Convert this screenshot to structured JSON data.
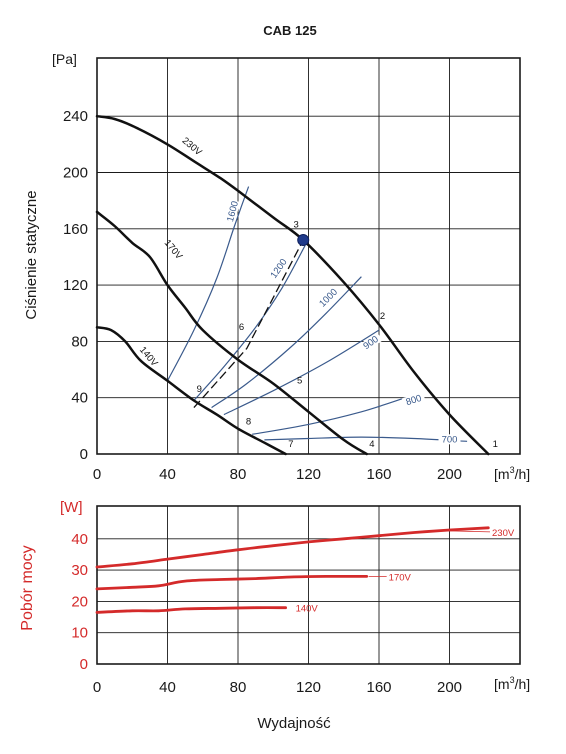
{
  "chart_data": [
    {
      "type": "line",
      "title": "CAB 125",
      "ylabel": "Ciśnienie statyczne",
      "yunit": "[Pa]",
      "xunit_base": "[m",
      "xunit_sup": "3",
      "xunit_tail": "/h]",
      "xlim": [
        0,
        240
      ],
      "ylim": [
        0,
        260
      ],
      "xticks": [
        "0",
        "40",
        "80",
        "120",
        "160",
        "200"
      ],
      "yticks": [
        "0",
        "40",
        "80",
        "120",
        "160",
        "200",
        "240"
      ],
      "grid": true,
      "series": [
        {
          "name": "230V",
          "points": [
            [
              0,
              240
            ],
            [
              10,
              238
            ],
            [
              22,
              232
            ],
            [
              40,
              220
            ],
            [
              55,
              208
            ],
            [
              70,
              196
            ],
            [
              80,
              187
            ],
            [
              100,
              168
            ],
            [
              117,
              152
            ],
            [
              140,
              122
            ],
            [
              160,
              92
            ],
            [
              180,
              58
            ],
            [
              200,
              28
            ],
            [
              222,
              0
            ]
          ]
        },
        {
          "name": "170V",
          "points": [
            [
              0,
              172
            ],
            [
              10,
              162
            ],
            [
              20,
              150
            ],
            [
              30,
              140
            ],
            [
              40,
              120
            ],
            [
              50,
              104
            ],
            [
              60,
              88
            ],
            [
              80,
              67
            ],
            [
              100,
              50
            ],
            [
              120,
              30
            ],
            [
              140,
              10
            ],
            [
              153,
              0
            ]
          ]
        },
        {
          "name": "140V",
          "points": [
            [
              0,
              90
            ],
            [
              8,
              88
            ],
            [
              16,
              80
            ],
            [
              25,
              66
            ],
            [
              40,
              52
            ],
            [
              55,
              38
            ],
            [
              68,
              28
            ],
            [
              80,
              18
            ],
            [
              95,
              8
            ],
            [
              107,
              0
            ]
          ]
        }
      ],
      "rpm_lines": [
        {
          "name": "1600",
          "points": [
            [
              40,
              52
            ],
            [
              55,
              88
            ],
            [
              68,
              125
            ],
            [
              78,
              162
            ],
            [
              86,
              190
            ]
          ]
        },
        {
          "name": "1200",
          "points": [
            [
              55,
              38
            ],
            [
              72,
              62
            ],
            [
              90,
              90
            ],
            [
              105,
              118
            ],
            [
              118,
              148
            ]
          ]
        },
        {
          "name": "1000",
          "points": [
            [
              65,
              33
            ],
            [
              85,
              50
            ],
            [
              110,
              76
            ],
            [
              130,
              100
            ],
            [
              150,
              126
            ]
          ]
        },
        {
          "name": "900",
          "points": [
            [
              72,
              28
            ],
            [
              100,
              45
            ],
            [
              130,
              65
            ],
            [
              160,
              88
            ]
          ]
        },
        {
          "name": "800",
          "points": [
            [
              88,
              14
            ],
            [
              120,
              21
            ],
            [
              150,
              30
            ],
            [
              175,
              40
            ]
          ]
        },
        {
          "name": "700",
          "points": [
            [
              95,
              10
            ],
            [
              120,
              11
            ],
            [
              150,
              12
            ],
            [
              180,
              11
            ],
            [
              210,
              9
            ]
          ]
        }
      ],
      "system_curve": {
        "points": [
          [
            55,
            33
          ],
          [
            85,
            75
          ],
          [
            117,
            152
          ]
        ]
      },
      "operating_point": {
        "label": "3",
        "x": 117,
        "y": 152
      },
      "curve_labels": [
        {
          "text": "230V",
          "x": 48,
          "y": 222
        },
        {
          "text": "170V",
          "x": 38,
          "y": 150
        },
        {
          "text": "140V",
          "x": 24,
          "y": 74
        }
      ],
      "rpm_labels": [
        {
          "text": "1600",
          "x": 78,
          "y": 172,
          "rotate": -75
        },
        {
          "text": "1200",
          "x": 104,
          "y": 131,
          "rotate": -55
        },
        {
          "text": "1000",
          "x": 132,
          "y": 110,
          "rotate": -45
        },
        {
          "text": "900",
          "x": 156,
          "y": 78,
          "rotate": -35
        },
        {
          "text": "800",
          "x": 180,
          "y": 37,
          "rotate": -17
        },
        {
          "text": "700",
          "x": 200,
          "y": 9,
          "rotate": 0
        }
      ],
      "points_labels": [
        {
          "text": "1",
          "x": 226,
          "y": 5
        },
        {
          "text": "2",
          "x": 162,
          "y": 96
        },
        {
          "text": "3",
          "x": 113,
          "y": 161
        },
        {
          "text": "4",
          "x": 156,
          "y": 5
        },
        {
          "text": "5",
          "x": 115,
          "y": 50
        },
        {
          "text": "6",
          "x": 82,
          "y": 88
        },
        {
          "text": "7",
          "x": 110,
          "y": 5
        },
        {
          "text": "8",
          "x": 86,
          "y": 21
        },
        {
          "text": "9",
          "x": 58,
          "y": 44
        }
      ]
    },
    {
      "type": "line",
      "ylabel": "Pobór mocy",
      "yunit": "[W]",
      "xlabel": "Wydajność",
      "xunit_base": "[m",
      "xunit_sup": "3",
      "xunit_tail": "/h]",
      "xlim": [
        0,
        240
      ],
      "ylim": [
        0,
        48
      ],
      "xticks": [
        "0",
        "40",
        "80",
        "120",
        "160",
        "200"
      ],
      "yticks": [
        "0",
        "10",
        "20",
        "30",
        "40"
      ],
      "grid": true,
      "series": [
        {
          "name": "230V",
          "points": [
            [
              0,
              31
            ],
            [
              20,
              32
            ],
            [
              40,
              33.5
            ],
            [
              60,
              35
            ],
            [
              80,
              36.5
            ],
            [
              100,
              37.8
            ],
            [
              120,
              39
            ],
            [
              140,
              40
            ],
            [
              160,
              41
            ],
            [
              180,
              42
            ],
            [
              200,
              42.8
            ],
            [
              222,
              43.5
            ]
          ]
        },
        {
          "name": "170V",
          "points": [
            [
              0,
              24
            ],
            [
              20,
              24.5
            ],
            [
              35,
              25
            ],
            [
              50,
              26.5
            ],
            [
              70,
              27
            ],
            [
              90,
              27.3
            ],
            [
              110,
              27.8
            ],
            [
              130,
              28
            ],
            [
              153,
              28
            ]
          ]
        },
        {
          "name": "140V",
          "points": [
            [
              0,
              16.5
            ],
            [
              20,
              17
            ],
            [
              35,
              17
            ],
            [
              50,
              17.6
            ],
            [
              70,
              17.8
            ],
            [
              90,
              18
            ],
            [
              107,
              18
            ]
          ]
        }
      ]
    }
  ]
}
